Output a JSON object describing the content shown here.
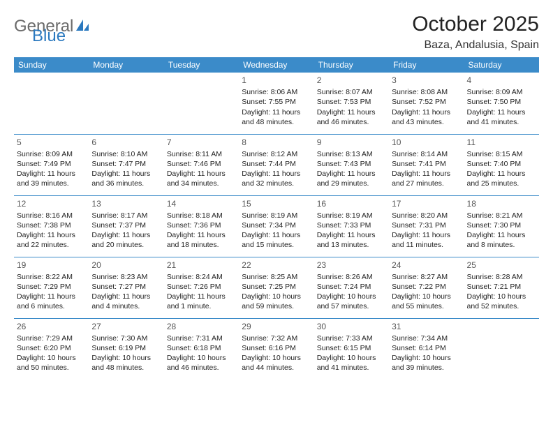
{
  "logo": {
    "text1": "General",
    "text2": "Blue"
  },
  "title": "October 2025",
  "location": "Baza, Andalusia, Spain",
  "colors": {
    "header_bg": "#3b8bc9",
    "header_text": "#ffffff",
    "border": "#3b8bc9",
    "logo_gray": "#6a6a6a",
    "logo_blue": "#2b79bf"
  },
  "weekdays": [
    "Sunday",
    "Monday",
    "Tuesday",
    "Wednesday",
    "Thursday",
    "Friday",
    "Saturday"
  ],
  "weeks": [
    [
      null,
      null,
      null,
      {
        "n": "1",
        "sr": "8:06 AM",
        "ss": "7:55 PM",
        "dl": "11 hours and 48 minutes."
      },
      {
        "n": "2",
        "sr": "8:07 AM",
        "ss": "7:53 PM",
        "dl": "11 hours and 46 minutes."
      },
      {
        "n": "3",
        "sr": "8:08 AM",
        "ss": "7:52 PM",
        "dl": "11 hours and 43 minutes."
      },
      {
        "n": "4",
        "sr": "8:09 AM",
        "ss": "7:50 PM",
        "dl": "11 hours and 41 minutes."
      }
    ],
    [
      {
        "n": "5",
        "sr": "8:09 AM",
        "ss": "7:49 PM",
        "dl": "11 hours and 39 minutes."
      },
      {
        "n": "6",
        "sr": "8:10 AM",
        "ss": "7:47 PM",
        "dl": "11 hours and 36 minutes."
      },
      {
        "n": "7",
        "sr": "8:11 AM",
        "ss": "7:46 PM",
        "dl": "11 hours and 34 minutes."
      },
      {
        "n": "8",
        "sr": "8:12 AM",
        "ss": "7:44 PM",
        "dl": "11 hours and 32 minutes."
      },
      {
        "n": "9",
        "sr": "8:13 AM",
        "ss": "7:43 PM",
        "dl": "11 hours and 29 minutes."
      },
      {
        "n": "10",
        "sr": "8:14 AM",
        "ss": "7:41 PM",
        "dl": "11 hours and 27 minutes."
      },
      {
        "n": "11",
        "sr": "8:15 AM",
        "ss": "7:40 PM",
        "dl": "11 hours and 25 minutes."
      }
    ],
    [
      {
        "n": "12",
        "sr": "8:16 AM",
        "ss": "7:38 PM",
        "dl": "11 hours and 22 minutes."
      },
      {
        "n": "13",
        "sr": "8:17 AM",
        "ss": "7:37 PM",
        "dl": "11 hours and 20 minutes."
      },
      {
        "n": "14",
        "sr": "8:18 AM",
        "ss": "7:36 PM",
        "dl": "11 hours and 18 minutes."
      },
      {
        "n": "15",
        "sr": "8:19 AM",
        "ss": "7:34 PM",
        "dl": "11 hours and 15 minutes."
      },
      {
        "n": "16",
        "sr": "8:19 AM",
        "ss": "7:33 PM",
        "dl": "11 hours and 13 minutes."
      },
      {
        "n": "17",
        "sr": "8:20 AM",
        "ss": "7:31 PM",
        "dl": "11 hours and 11 minutes."
      },
      {
        "n": "18",
        "sr": "8:21 AM",
        "ss": "7:30 PM",
        "dl": "11 hours and 8 minutes."
      }
    ],
    [
      {
        "n": "19",
        "sr": "8:22 AM",
        "ss": "7:29 PM",
        "dl": "11 hours and 6 minutes."
      },
      {
        "n": "20",
        "sr": "8:23 AM",
        "ss": "7:27 PM",
        "dl": "11 hours and 4 minutes."
      },
      {
        "n": "21",
        "sr": "8:24 AM",
        "ss": "7:26 PM",
        "dl": "11 hours and 1 minute."
      },
      {
        "n": "22",
        "sr": "8:25 AM",
        "ss": "7:25 PM",
        "dl": "10 hours and 59 minutes."
      },
      {
        "n": "23",
        "sr": "8:26 AM",
        "ss": "7:24 PM",
        "dl": "10 hours and 57 minutes."
      },
      {
        "n": "24",
        "sr": "8:27 AM",
        "ss": "7:22 PM",
        "dl": "10 hours and 55 minutes."
      },
      {
        "n": "25",
        "sr": "8:28 AM",
        "ss": "7:21 PM",
        "dl": "10 hours and 52 minutes."
      }
    ],
    [
      {
        "n": "26",
        "sr": "7:29 AM",
        "ss": "6:20 PM",
        "dl": "10 hours and 50 minutes."
      },
      {
        "n": "27",
        "sr": "7:30 AM",
        "ss": "6:19 PM",
        "dl": "10 hours and 48 minutes."
      },
      {
        "n": "28",
        "sr": "7:31 AM",
        "ss": "6:18 PM",
        "dl": "10 hours and 46 minutes."
      },
      {
        "n": "29",
        "sr": "7:32 AM",
        "ss": "6:16 PM",
        "dl": "10 hours and 44 minutes."
      },
      {
        "n": "30",
        "sr": "7:33 AM",
        "ss": "6:15 PM",
        "dl": "10 hours and 41 minutes."
      },
      {
        "n": "31",
        "sr": "7:34 AM",
        "ss": "6:14 PM",
        "dl": "10 hours and 39 minutes."
      },
      null
    ]
  ],
  "labels": {
    "sunrise": "Sunrise:",
    "sunset": "Sunset:",
    "daylight": "Daylight:"
  }
}
